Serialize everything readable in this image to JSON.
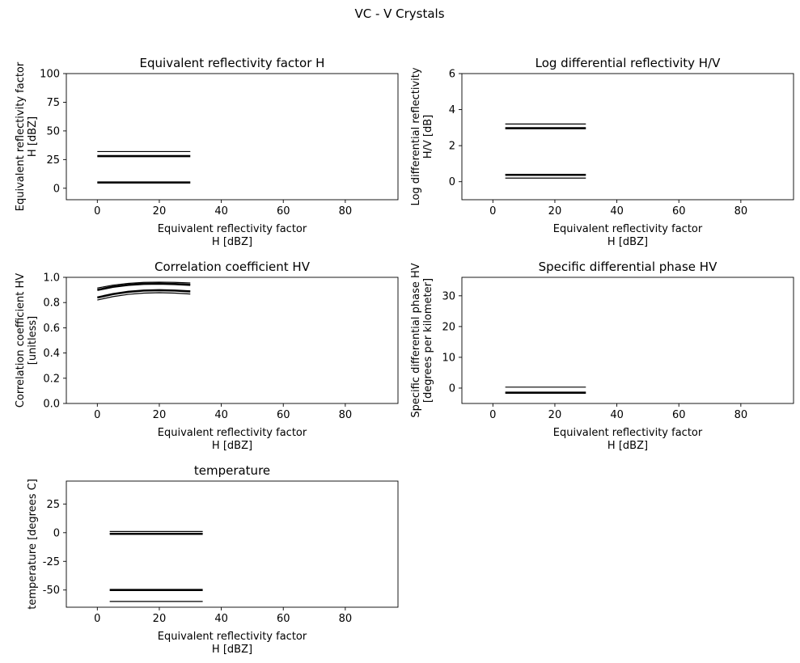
{
  "suptitle": "VC - V Crystals",
  "chart_data": [
    {
      "type": "line",
      "title": "Equivalent reflectivity factor H",
      "xlabel": [
        "Equivalent reflectivity factor",
        "H [dBZ]"
      ],
      "ylabel": [
        "Equivalent reflectivity factor",
        "H [dBZ]"
      ],
      "xlim": [
        -10,
        97
      ],
      "ylim": [
        -10,
        100
      ],
      "xticks": [
        0,
        20,
        40,
        60,
        80
      ],
      "yticks": [
        0,
        25,
        50,
        75,
        100
      ],
      "grid": false,
      "series": [
        {
          "x": [
            0,
            30
          ],
          "y": [
            32,
            32
          ],
          "weight": "thin"
        },
        {
          "x": [
            0,
            30
          ],
          "y": [
            28,
            28
          ],
          "weight": "thick"
        },
        {
          "x": [
            0,
            30
          ],
          "y": [
            5,
            5
          ],
          "weight": "thick"
        }
      ]
    },
    {
      "type": "line",
      "title": "Log differential reflectivity H/V",
      "xlabel": [
        "Equivalent reflectivity factor",
        "H [dBZ]"
      ],
      "ylabel": [
        "Log differential reflectivity",
        "H/V [dB]"
      ],
      "xlim": [
        -10,
        97
      ],
      "ylim": [
        -1,
        6
      ],
      "xticks": [
        0,
        20,
        40,
        60,
        80
      ],
      "yticks": [
        0,
        2,
        4,
        6
      ],
      "grid": false,
      "series": [
        {
          "x": [
            4,
            30
          ],
          "y": [
            3.2,
            3.2
          ],
          "weight": "thin"
        },
        {
          "x": [
            4,
            30
          ],
          "y": [
            2.97,
            2.97
          ],
          "weight": "thick"
        },
        {
          "x": [
            4,
            30
          ],
          "y": [
            0.38,
            0.38
          ],
          "weight": "thick"
        },
        {
          "x": [
            4,
            30
          ],
          "y": [
            0.2,
            0.2
          ],
          "weight": "thin"
        }
      ]
    },
    {
      "type": "line",
      "title": "Correlation coefficient HV",
      "xlabel": [
        "Equivalent reflectivity factor",
        "H [dBZ]"
      ],
      "ylabel": [
        "Correlation coefficient HV",
        "[unitless]"
      ],
      "xlim": [
        -10,
        97
      ],
      "ylim": [
        0,
        1
      ],
      "xticks": [
        0,
        20,
        40,
        60,
        80
      ],
      "yticks": [
        0.0,
        0.2,
        0.4,
        0.6,
        0.8,
        1.0
      ],
      "ytick_labels": [
        "0.0",
        "0.2",
        "0.4",
        "0.6",
        "0.8",
        "1.0"
      ],
      "grid": false,
      "series": [
        {
          "x": [
            0,
            5,
            10,
            15,
            20,
            25,
            30
          ],
          "y": [
            0.915,
            0.938,
            0.952,
            0.96,
            0.962,
            0.96,
            0.955
          ],
          "weight": "thin"
        },
        {
          "x": [
            0,
            5,
            10,
            15,
            20,
            25,
            30
          ],
          "y": [
            0.9,
            0.925,
            0.94,
            0.948,
            0.95,
            0.947,
            0.94
          ],
          "weight": "thick"
        },
        {
          "x": [
            0,
            5,
            10,
            15,
            20,
            25,
            30
          ],
          "y": [
            0.84,
            0.867,
            0.885,
            0.895,
            0.898,
            0.895,
            0.888
          ],
          "weight": "thick"
        },
        {
          "x": [
            0,
            5,
            10,
            15,
            20,
            25,
            30
          ],
          "y": [
            0.82,
            0.847,
            0.865,
            0.875,
            0.878,
            0.875,
            0.868
          ],
          "weight": "thin"
        }
      ]
    },
    {
      "type": "line",
      "title": "Specific differential phase HV",
      "xlabel": [
        "Equivalent reflectivity factor",
        "H [dBZ]"
      ],
      "ylabel": [
        "Specific differential phase HV",
        "[degrees per kilometer]"
      ],
      "xlim": [
        -10,
        97
      ],
      "ylim": [
        -5,
        36
      ],
      "xticks": [
        0,
        20,
        40,
        60,
        80
      ],
      "yticks": [
        0,
        10,
        20,
        30
      ],
      "grid": false,
      "series": [
        {
          "x": [
            4,
            30
          ],
          "y": [
            0.3,
            0.3
          ],
          "weight": "thin"
        },
        {
          "x": [
            4,
            30
          ],
          "y": [
            -1.5,
            -1.5
          ],
          "weight": "thick"
        }
      ]
    },
    {
      "type": "line",
      "title": "temperature",
      "xlabel": [
        "Equivalent reflectivity factor",
        "H [dBZ]"
      ],
      "ylabel": [
        "temperature [degrees C]"
      ],
      "xlim": [
        -10,
        97
      ],
      "ylim": [
        -65,
        45
      ],
      "xticks": [
        0,
        20,
        40,
        60,
        80
      ],
      "yticks": [
        -50,
        -25,
        0,
        25
      ],
      "grid": false,
      "series": [
        {
          "x": [
            4,
            34
          ],
          "y": [
            1.0,
            1.0
          ],
          "weight": "thin"
        },
        {
          "x": [
            4,
            34
          ],
          "y": [
            -1.0,
            -1.0
          ],
          "weight": "thick"
        },
        {
          "x": [
            4,
            34
          ],
          "y": [
            -50,
            -50
          ],
          "weight": "thick"
        },
        {
          "x": [
            4,
            34
          ],
          "y": [
            -60,
            -60
          ],
          "weight": "thin"
        }
      ]
    }
  ]
}
